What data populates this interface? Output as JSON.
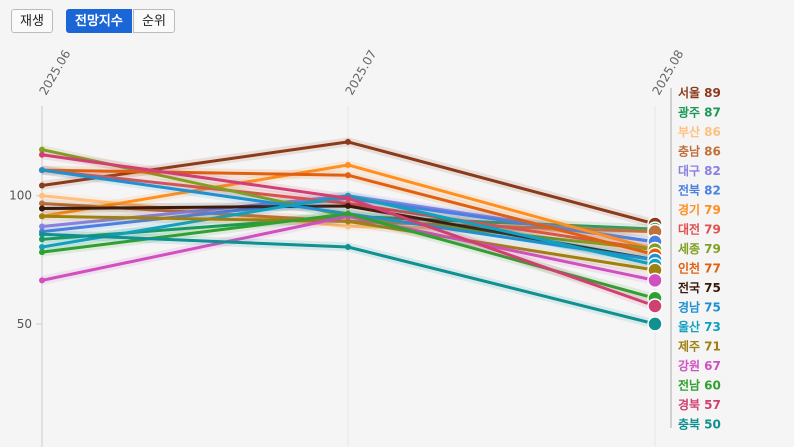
{
  "controls": [
    "재생",
    "전망지수",
    "순위"
  ],
  "chart_data": {
    "type": "line",
    "categories": [
      "2025.06",
      "2025.07",
      "2025.08"
    ],
    "ylim": [
      2,
      135
    ],
    "yticks": [
      50,
      100
    ],
    "series": [
      {
        "name": "서울",
        "color": "#8b3a1a",
        "values": [
          104,
          121,
          89
        ]
      },
      {
        "name": "광주",
        "color": "#1a9a5a",
        "values": [
          83,
          92,
          87
        ]
      },
      {
        "name": "부산",
        "color": "#ffc080",
        "values": [
          100,
          88,
          86
        ]
      },
      {
        "name": "충남",
        "color": "#c0703a",
        "values": [
          97,
          90,
          86
        ]
      },
      {
        "name": "대구",
        "color": "#8a80e0",
        "values": [
          88,
          100,
          82
        ]
      },
      {
        "name": "전북",
        "color": "#4a80e0",
        "values": [
          86,
          99,
          82
        ]
      },
      {
        "name": "경기",
        "color": "#ff9020",
        "values": [
          92,
          112,
          79
        ]
      },
      {
        "name": "대전",
        "color": "#e05050",
        "values": [
          110,
          97,
          79
        ]
      },
      {
        "name": "세종",
        "color": "#80a020",
        "values": [
          118,
          92,
          79
        ]
      },
      {
        "name": "인천",
        "color": "#e06010",
        "values": [
          110,
          108,
          77
        ]
      },
      {
        "name": "전국",
        "color": "#3a1a0a",
        "values": [
          95,
          96,
          75
        ]
      },
      {
        "name": "경남",
        "color": "#2090d0",
        "values": [
          110,
          93,
          75
        ]
      },
      {
        "name": "울산",
        "color": "#10a0c0",
        "values": [
          80,
          100,
          73
        ]
      },
      {
        "name": "제주",
        "color": "#a08010",
        "values": [
          92,
          90,
          71
        ]
      },
      {
        "name": "강원",
        "color": "#d050c0",
        "values": [
          67,
          92,
          67
        ]
      },
      {
        "name": "전남",
        "color": "#30a030",
        "values": [
          78,
          93,
          60
        ]
      },
      {
        "name": "경북",
        "color": "#d04070",
        "values": [
          116,
          99,
          57
        ]
      },
      {
        "name": "충북",
        "color": "#109090",
        "values": [
          85,
          80,
          50
        ]
      }
    ]
  }
}
